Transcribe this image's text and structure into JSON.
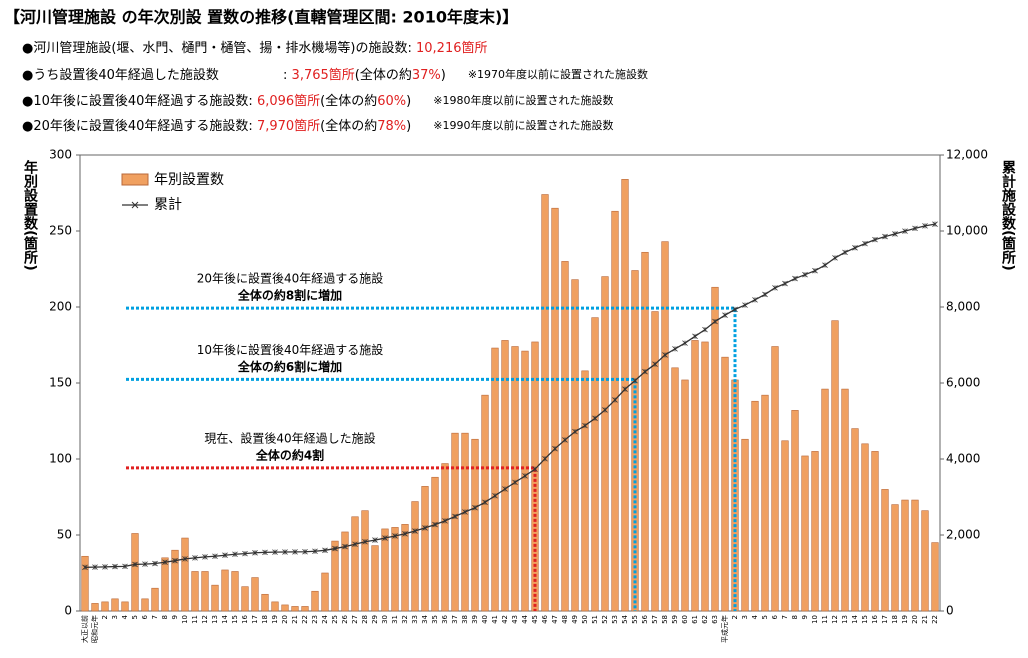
{
  "chart_data": {
    "type": "bar_line",
    "title": "【河川管理施設 の年次別設 置数の推移(直轄管理区間: 2010年度末)】",
    "header_lines": [
      [
        {
          "text": "●河川管理施設(堰、水門、樋門・樋管、揚・排水機場等)の施設数: "
        },
        {
          "text": "10,216箇所",
          "color": "#e02020"
        }
      ],
      [
        {
          "text": "●うち設置後40年経過した施設数 "
        },
        {
          "text": ": ",
          "gap": true
        },
        {
          "text": "3,765箇所",
          "color": "#e02020"
        },
        {
          "text": "(全体の約"
        },
        {
          "text": "37%",
          "color": "#e02020"
        },
        {
          "text": ")"
        },
        {
          "text": "※1970年度以前に設置された施設数",
          "note": true
        }
      ],
      [
        {
          "text": "●10年後に設置後40年経過する施設数: "
        },
        {
          "text": "6,096箇所",
          "color": "#e02020"
        },
        {
          "text": "(全体の約"
        },
        {
          "text": "60%",
          "color": "#e02020"
        },
        {
          "text": ")"
        },
        {
          "text": "※1980年度以前に設置された施設数",
          "note": true
        }
      ],
      [
        {
          "text": "●20年後に設置後40年経過する施設数: "
        },
        {
          "text": "7,970箇所",
          "color": "#e02020"
        },
        {
          "text": "(全体の約"
        },
        {
          "text": "78%",
          "color": "#e02020"
        },
        {
          "text": ")"
        },
        {
          "text": "※1990年度以前に設置された施設数",
          "note": true
        }
      ]
    ],
    "ylabel": "年別設置数(箇所)",
    "y2label": "累計施設数(箇所)",
    "categories": [
      "大正以前",
      "昭和元年",
      "2",
      "3",
      "4",
      "5",
      "6",
      "7",
      "8",
      "9",
      "10",
      "11",
      "12",
      "13",
      "14",
      "15",
      "16",
      "17",
      "18",
      "19",
      "20",
      "21",
      "22",
      "23",
      "24",
      "25",
      "26",
      "27",
      "28",
      "29",
      "30",
      "31",
      "32",
      "33",
      "34",
      "35",
      "36",
      "37",
      "38",
      "39",
      "40",
      "41",
      "42",
      "43",
      "44",
      "45",
      "46",
      "47",
      "48",
      "49",
      "50",
      "51",
      "52",
      "53",
      "54",
      "55",
      "56",
      "57",
      "58",
      "59",
      "60",
      "61",
      "62",
      "63",
      "平成元年",
      "2",
      "3",
      "4",
      "5",
      "6",
      "7",
      "8",
      "9",
      "10",
      "11",
      "12",
      "13",
      "14",
      "15",
      "16",
      "17",
      "18",
      "19",
      "20",
      "21",
      "22"
    ],
    "series": [
      {
        "name": "年別設置数",
        "color": "#f0a060",
        "values": [
          36,
          5,
          6,
          8,
          6,
          51,
          8,
          15,
          35,
          40,
          48,
          26,
          26,
          17,
          27,
          26,
          16,
          22,
          11,
          6,
          4,
          3,
          3,
          13,
          25,
          46,
          52,
          62,
          66,
          43,
          54,
          55,
          57,
          72,
          82,
          88,
          97,
          117,
          117,
          113,
          142,
          173,
          178,
          174,
          171,
          177,
          274,
          265,
          230,
          218,
          158,
          193,
          220,
          263,
          284,
          224,
          236,
          197,
          243,
          160,
          152,
          178,
          177,
          213,
          167,
          152,
          113,
          138,
          142,
          174,
          112,
          132,
          102,
          105,
          146,
          191,
          146,
          120,
          110,
          105,
          80,
          70,
          73,
          73,
          66,
          45
        ]
      },
      {
        "name": "累計",
        "color": "#333333",
        "axis": "y2",
        "values": [
          1150,
          1155,
          1161,
          1169,
          1175,
          1226,
          1234,
          1249,
          1284,
          1324,
          1372,
          1398,
          1424,
          1441,
          1468,
          1494,
          1510,
          1532,
          1543,
          1549,
          1553,
          1556,
          1559,
          1572,
          1597,
          1643,
          1695,
          1757,
          1823,
          1866,
          1920,
          1975,
          2032,
          2104,
          2186,
          2274,
          2371,
          2488,
          2605,
          2718,
          2860,
          3033,
          3211,
          3385,
          3556,
          3733,
          4007,
          4272,
          4502,
          4720,
          4878,
          5071,
          5291,
          5554,
          5838,
          6062,
          6298,
          6495,
          6738,
          6898,
          7050,
          7228,
          7405,
          7618,
          7785,
          7937,
          8050,
          8188,
          8330,
          8504,
          8616,
          8748,
          8850,
          8955,
          9101,
          9292,
          9438,
          9558,
          9668,
          9773,
          9853,
          9923,
          9996,
          10069,
          10135,
          10180
        ]
      }
    ],
    "ylim": [
      0,
      300
    ],
    "yticks": [
      0,
      50,
      100,
      150,
      200,
      250,
      300
    ],
    "y2lim": [
      0,
      12000
    ],
    "y2ticks": [
      0,
      {
        "value": 2000,
        "label": "2,000"
      },
      {
        "value": 4000,
        "label": "4,000"
      },
      {
        "value": 6000,
        "label": "6,000"
      },
      {
        "value": 8000,
        "label": "8,000"
      },
      {
        "value": 10000,
        "label": "10,000"
      },
      {
        "value": 12000,
        "label": "12,000"
      }
    ],
    "legend": "top-left",
    "annotations": [
      {
        "text": "20年後に設置後40年経過する施設",
        "highlight": "全体の約8割に増加",
        "value": 7970,
        "color": "#00a0e0"
      },
      {
        "text": "10年後に設置後40年経過する施設",
        "highlight": "全体の約6割に増加",
        "value": 6096,
        "color": "#00a0e0"
      },
      {
        "text": "現在、設置後40年経過した施設",
        "highlight": "全体の約4割",
        "value": 3765,
        "color": "#e02020"
      }
    ]
  }
}
